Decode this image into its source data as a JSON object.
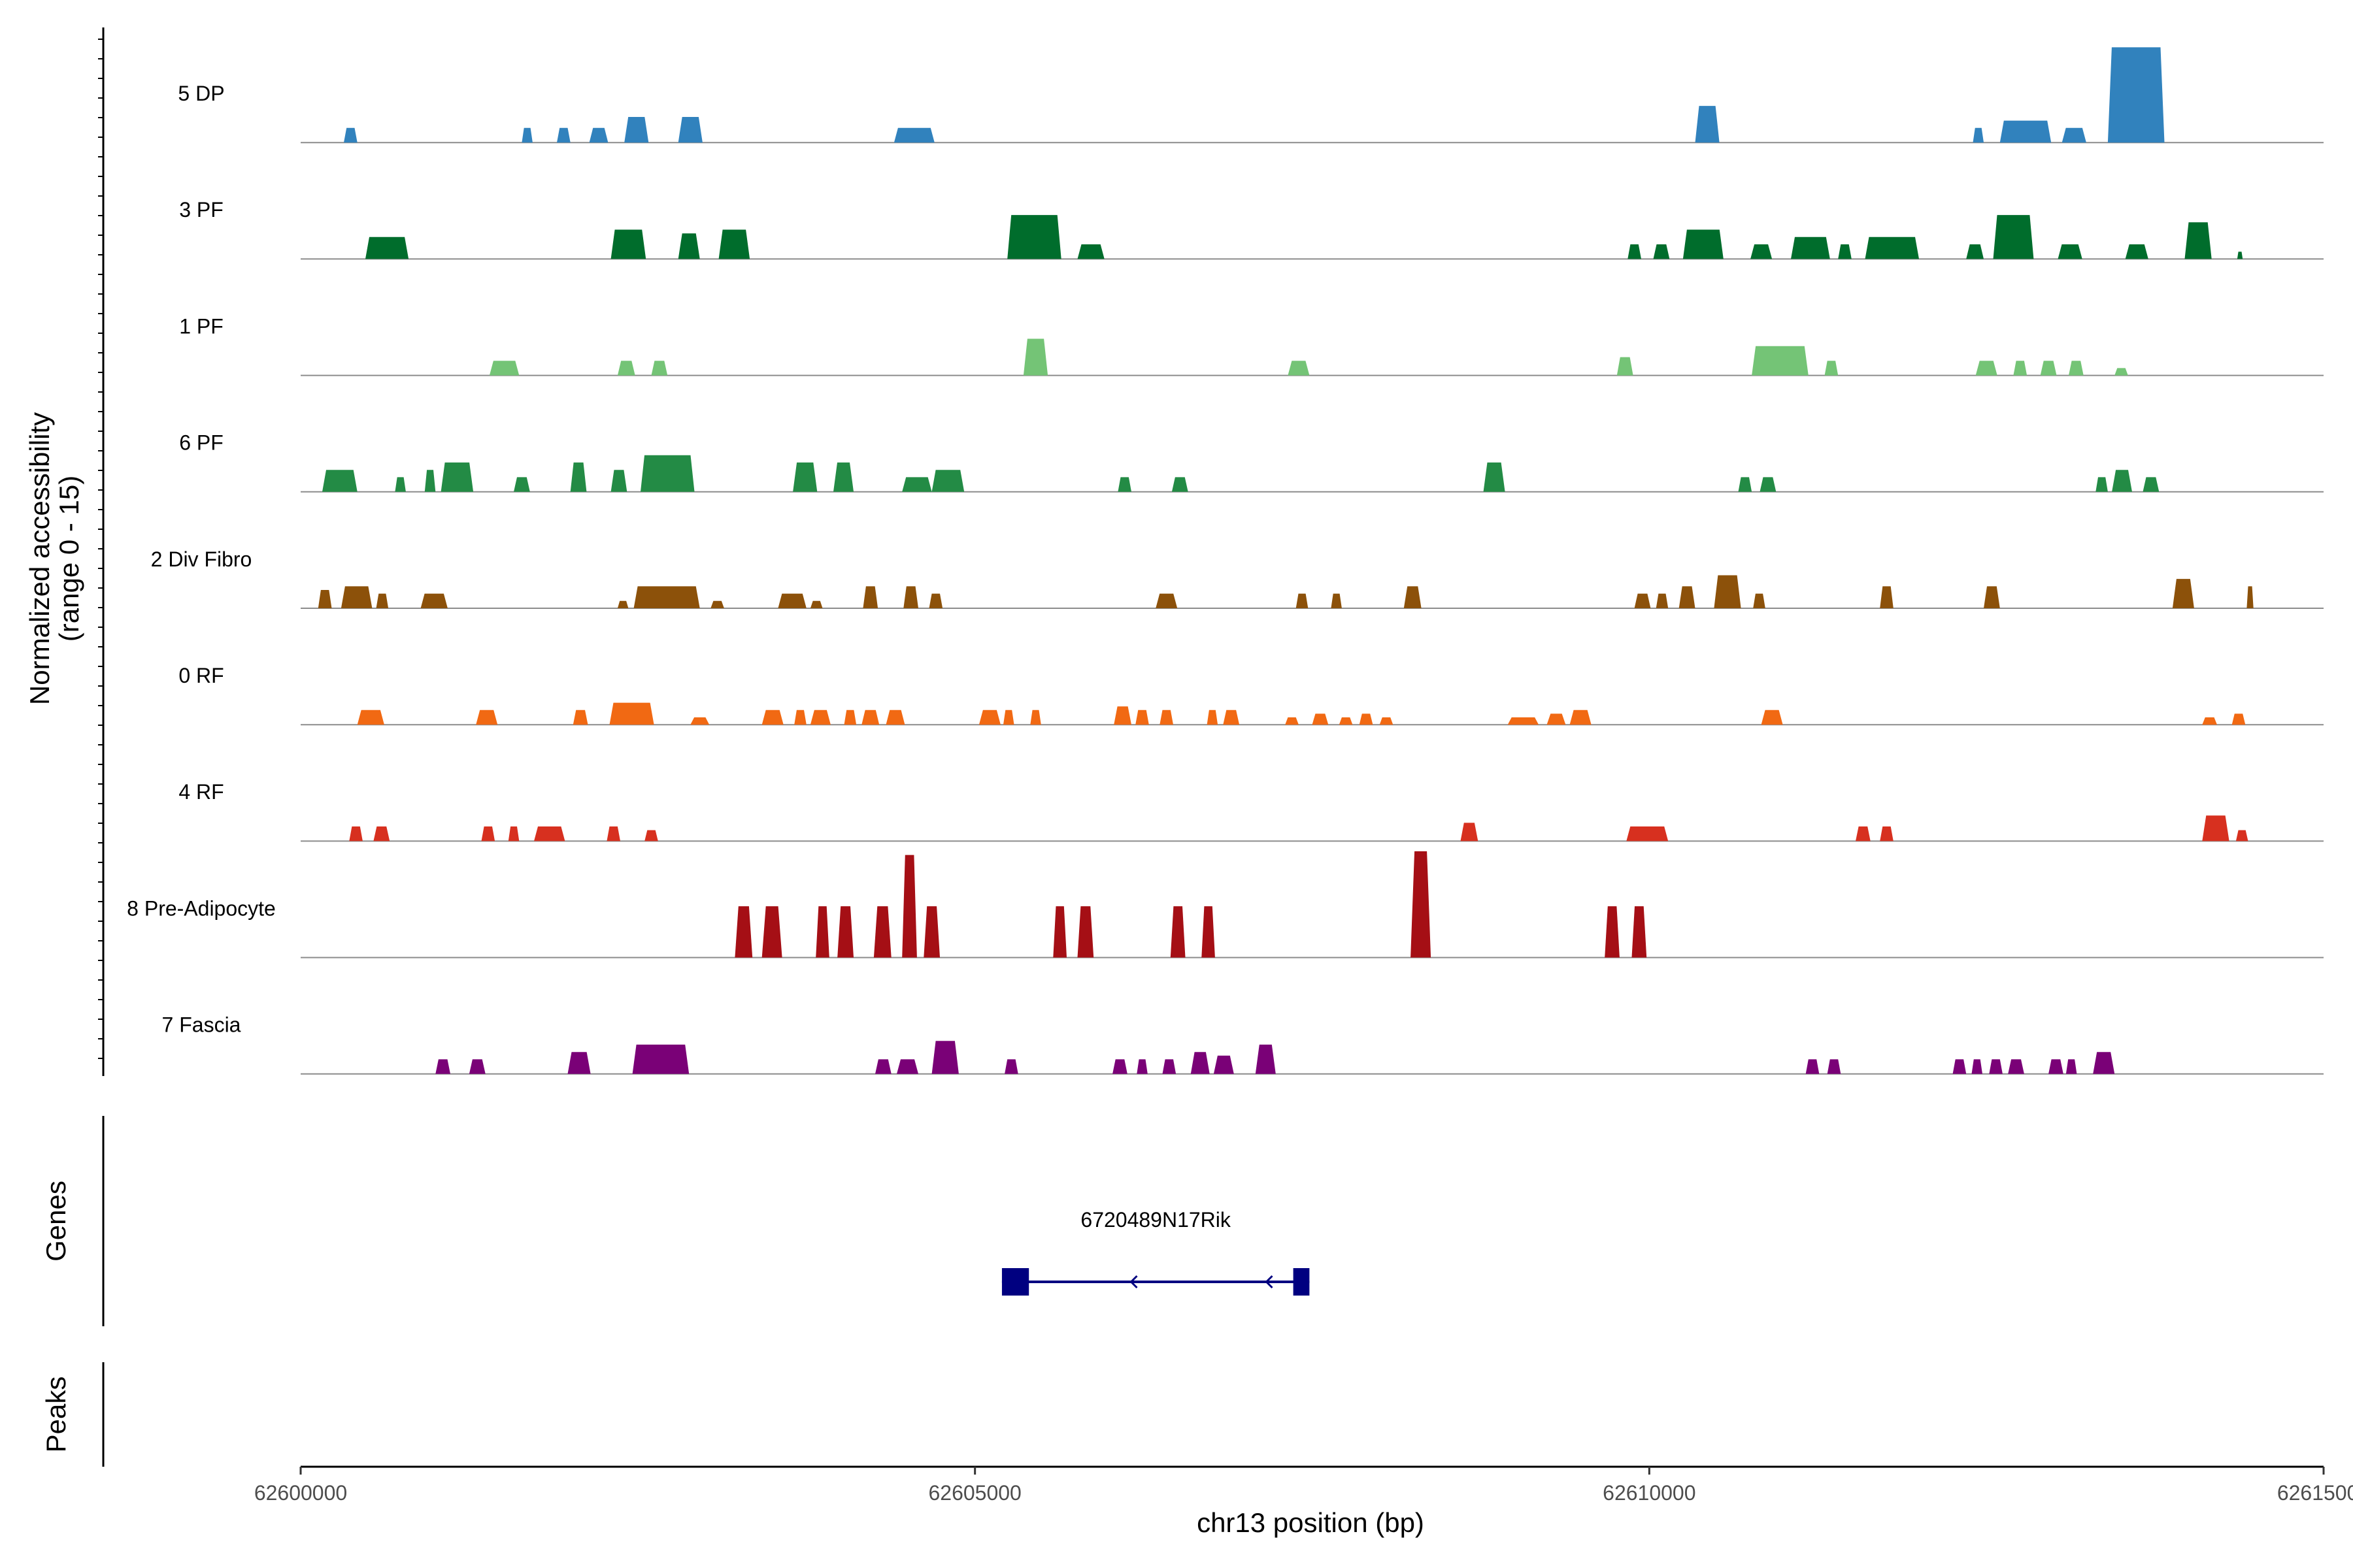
{
  "chart_data": {
    "type": "area",
    "title": "",
    "xlabel": "chr13 position (bp)",
    "ylabel_line1": "Normalized accessibility",
    "ylabel_line2": "(range 0 - 15)",
    "xlim": [
      62600000,
      62615000
    ],
    "ylim": [
      0,
      15
    ],
    "x_ticks": [
      62600000,
      62605000,
      62610000,
      62615000
    ],
    "x_tick_labels": [
      "62600000",
      "62605000",
      "62610000",
      "62615000"
    ],
    "gene_track_label": "Genes",
    "peak_track_label": "Peaks",
    "gene": {
      "name": "6720489N17Rik",
      "start": 62605200,
      "end": 62607480,
      "strand": "-",
      "exons": [
        [
          62605200,
          62605400
        ],
        [
          62607360,
          62607480
        ]
      ],
      "color": "#000080"
    },
    "series": [
      {
        "name": "5 DP",
        "color": "#3182bd",
        "peaks": [
          [
            62600320,
            62600420,
            2
          ],
          [
            62601640,
            62601720,
            2
          ],
          [
            62601900,
            62602000,
            2
          ],
          [
            62602140,
            62602280,
            2
          ],
          [
            62602400,
            62602580,
            3.5
          ],
          [
            62602800,
            62602980,
            3.5
          ],
          [
            62604400,
            62604700,
            2
          ],
          [
            62610340,
            62610520,
            5
          ],
          [
            62612400,
            62612480,
            2
          ],
          [
            62612600,
            62612980,
            3
          ],
          [
            62613060,
            62613240,
            2
          ],
          [
            62613400,
            62613820,
            13
          ]
        ]
      },
      {
        "name": "3 PF",
        "color": "#006d2c",
        "peaks": [
          [
            62600480,
            62600800,
            3
          ],
          [
            62602300,
            62602560,
            4
          ],
          [
            62602800,
            62602960,
            3.5
          ],
          [
            62603100,
            62603330,
            4
          ],
          [
            62605240,
            62605640,
            6
          ],
          [
            62605760,
            62605960,
            2
          ],
          [
            62609840,
            62609940,
            2
          ],
          [
            62610030,
            62610150,
            2
          ],
          [
            62610250,
            62610550,
            4
          ],
          [
            62610750,
            62610910,
            2
          ],
          [
            62611050,
            62611340,
            3
          ],
          [
            62611400,
            62611500,
            2
          ],
          [
            62611600,
            62612000,
            3
          ],
          [
            62612350,
            62612480,
            2
          ],
          [
            62612550,
            62612850,
            6
          ],
          [
            62613030,
            62613210,
            2
          ],
          [
            62613530,
            62613700,
            2
          ],
          [
            62613970,
            62614170,
            5
          ],
          [
            62614360,
            62614400,
            1
          ]
        ]
      },
      {
        "name": "1 PF",
        "color": "#74c476",
        "peaks": [
          [
            62601400,
            62601620,
            2
          ],
          [
            62602350,
            62602480,
            2
          ],
          [
            62602600,
            62602720,
            2
          ],
          [
            62605360,
            62605540,
            5
          ],
          [
            62607320,
            62607480,
            2
          ],
          [
            62609760,
            62609880,
            2.5
          ],
          [
            62610760,
            62611180,
            4
          ],
          [
            62611300,
            62611400,
            2
          ],
          [
            62612420,
            62612580,
            2
          ],
          [
            62612700,
            62612800,
            2
          ],
          [
            62612900,
            62613020,
            2
          ],
          [
            62613110,
            62613220,
            2
          ],
          [
            62613450,
            62613550,
            1
          ]
        ]
      },
      {
        "name": "6 PF",
        "color": "#238b45",
        "peaks": [
          [
            62600160,
            62600420,
            3
          ],
          [
            62600700,
            62600780,
            2
          ],
          [
            62600920,
            62601000,
            3
          ],
          [
            62601040,
            62601280,
            4
          ],
          [
            62601580,
            62601700,
            2
          ],
          [
            62602000,
            62602120,
            4
          ],
          [
            62602300,
            62602420,
            3
          ],
          [
            62602520,
            62602920,
            5
          ],
          [
            62603650,
            62603830,
            4
          ],
          [
            62603950,
            62604100,
            4
          ],
          [
            62604460,
            62604680,
            2
          ],
          [
            62604680,
            62604920,
            3
          ],
          [
            62606060,
            62606160,
            2
          ],
          [
            62606460,
            62606580,
            2
          ],
          [
            62608770,
            62608930,
            4
          ],
          [
            62610660,
            62610760,
            2
          ],
          [
            62610820,
            62610940,
            2
          ],
          [
            62613310,
            62613400,
            2
          ],
          [
            62613430,
            62613580,
            3
          ],
          [
            62613660,
            62613780,
            2
          ]
        ]
      },
      {
        "name": "2 Div Fibro",
        "color": "#8c510a",
        "peaks": [
          [
            62600130,
            62600230,
            2.5
          ],
          [
            62600300,
            62600530,
            3
          ],
          [
            62600560,
            62600650,
            2
          ],
          [
            62600890,
            62601090,
            2
          ],
          [
            62602350,
            62602430,
            1
          ],
          [
            62602470,
            62602960,
            3
          ],
          [
            62603040,
            62603140,
            1
          ],
          [
            62603540,
            62603750,
            2
          ],
          [
            62603780,
            62603870,
            1
          ],
          [
            62604170,
            62604280,
            3
          ],
          [
            62604470,
            62604580,
            3
          ],
          [
            62604660,
            62604760,
            2
          ],
          [
            62606340,
            62606500,
            2
          ],
          [
            62607380,
            62607470,
            2
          ],
          [
            62607640,
            62607720,
            2
          ],
          [
            62608180,
            62608310,
            3
          ],
          [
            62609890,
            62610010,
            2
          ],
          [
            62610050,
            62610140,
            2
          ],
          [
            62610220,
            62610340,
            3
          ],
          [
            62610480,
            62610680,
            4.5
          ],
          [
            62610770,
            62610860,
            2
          ],
          [
            62611710,
            62611810,
            3
          ],
          [
            62612480,
            62612600,
            3
          ],
          [
            62613880,
            62614040,
            4
          ],
          [
            62614430,
            62614480,
            3
          ]
        ]
      },
      {
        "name": "0 RF",
        "color": "#f16913",
        "peaks": [
          [
            62600420,
            62600620,
            2
          ],
          [
            62601300,
            62601460,
            2
          ],
          [
            62602020,
            62602130,
            2
          ],
          [
            62602290,
            62602620,
            3
          ],
          [
            62602890,
            62603030,
            1
          ],
          [
            62603420,
            62603580,
            2
          ],
          [
            62603660,
            62603750,
            2
          ],
          [
            62603780,
            62603930,
            2
          ],
          [
            62604030,
            62604120,
            2
          ],
          [
            62604160,
            62604290,
            2
          ],
          [
            62604340,
            62604480,
            2
          ],
          [
            62605030,
            62605190,
            2
          ],
          [
            62605210,
            62605290,
            2
          ],
          [
            62605410,
            62605490,
            2
          ],
          [
            62606030,
            62606160,
            2.5
          ],
          [
            62606190,
            62606290,
            2
          ],
          [
            62606370,
            62606470,
            2
          ],
          [
            62606720,
            62606800,
            2
          ],
          [
            62606840,
            62606960,
            2
          ],
          [
            62607300,
            62607400,
            1
          ],
          [
            62607500,
            62607620,
            1.5
          ],
          [
            62607700,
            62607800,
            1
          ],
          [
            62607850,
            62607950,
            1.5
          ],
          [
            62608000,
            62608100,
            1
          ],
          [
            62608950,
            62609180,
            1
          ],
          [
            62609240,
            62609380,
            1.5
          ],
          [
            62609410,
            62609570,
            2
          ],
          [
            62610830,
            62610990,
            2
          ],
          [
            62614100,
            62614210,
            1
          ],
          [
            62614320,
            62614420,
            1.5
          ]
        ]
      },
      {
        "name": "4 RF",
        "color": "#d7301f",
        "peaks": [
          [
            62600360,
            62600460,
            2
          ],
          [
            62600540,
            62600660,
            2
          ],
          [
            62601340,
            62601440,
            2
          ],
          [
            62601540,
            62601620,
            2
          ],
          [
            62601730,
            62601960,
            2
          ],
          [
            62602270,
            62602370,
            2
          ],
          [
            62602550,
            62602650,
            1.5
          ],
          [
            62608600,
            62608730,
            2.5
          ],
          [
            62609830,
            62610140,
            2
          ],
          [
            62611530,
            62611640,
            2
          ],
          [
            62611710,
            62611810,
            2
          ],
          [
            62614100,
            62614300,
            3.5
          ],
          [
            62614350,
            62614440,
            1.5
          ]
        ]
      },
      {
        "name": "8 Pre-Adipocyte",
        "color": "#a50f15",
        "peaks": [
          [
            62603220,
            62603350,
            7
          ],
          [
            62603420,
            62603570,
            7
          ],
          [
            62603820,
            62603920,
            7
          ],
          [
            62603980,
            62604100,
            7
          ],
          [
            62604250,
            62604380,
            7
          ],
          [
            62604460,
            62604570,
            14
          ],
          [
            62604620,
            62604740,
            7
          ],
          [
            62605580,
            62605680,
            7
          ],
          [
            62605760,
            62605880,
            7
          ],
          [
            62606450,
            62606560,
            7
          ],
          [
            62606680,
            62606780,
            7
          ],
          [
            62608230,
            62608380,
            14.5
          ],
          [
            62609670,
            62609780,
            7
          ],
          [
            62609870,
            62609980,
            7
          ]
        ]
      },
      {
        "name": "7 Fascia",
        "color": "#7a0177",
        "peaks": [
          [
            62601000,
            62601110,
            2
          ],
          [
            62601250,
            62601370,
            2
          ],
          [
            62601980,
            62602150,
            3
          ],
          [
            62602460,
            62602880,
            4
          ],
          [
            62604260,
            62604380,
            2
          ],
          [
            62604420,
            62604580,
            2
          ],
          [
            62604680,
            62604880,
            4.5
          ],
          [
            62605220,
            62605320,
            2
          ],
          [
            62606020,
            62606130,
            2
          ],
          [
            62606200,
            62606280,
            2
          ],
          [
            62606390,
            62606490,
            2
          ],
          [
            62606600,
            62606740,
            3
          ],
          [
            62606770,
            62606920,
            2.5
          ],
          [
            62607080,
            62607230,
            4
          ],
          [
            62611160,
            62611260,
            2
          ],
          [
            62611320,
            62611420,
            2
          ],
          [
            62612250,
            62612350,
            2
          ],
          [
            62612390,
            62612470,
            2
          ],
          [
            62612520,
            62612620,
            2
          ],
          [
            62612660,
            62612780,
            2
          ],
          [
            62612960,
            62613070,
            2
          ],
          [
            62613090,
            62613170,
            2
          ],
          [
            62613290,
            62613450,
            3
          ]
        ]
      }
    ]
  }
}
